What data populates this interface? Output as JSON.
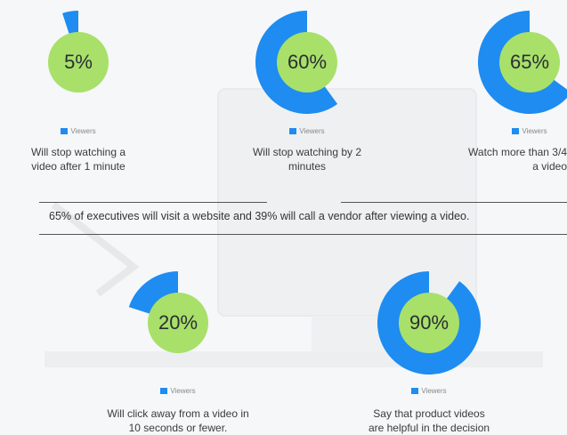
{
  "colors": {
    "arc": "#1e8cf0",
    "inner": "#a8e06a",
    "background": "#f6f7f8"
  },
  "legend_label": "Viewers",
  "statement": "65% of executives will visit a website and 39% will call a vendor after viewing a video.",
  "chart_data": [
    {
      "type": "pie",
      "value": 5,
      "percent_label": "5%",
      "series": "Viewers",
      "description": [
        "Will stop watching a",
        "video after 1 minute"
      ]
    },
    {
      "type": "pie",
      "value": 60,
      "percent_label": "60%",
      "series": "Viewers",
      "description": [
        "Will stop watching by 2",
        "minutes"
      ]
    },
    {
      "type": "pie",
      "value": 65,
      "percent_label": "65%",
      "series": "Viewers",
      "description": [
        "Watch more than 3/4",
        "a video"
      ]
    },
    {
      "type": "pie",
      "value": 20,
      "percent_label": "20%",
      "series": "Viewers",
      "description": [
        "Will click away from a video in",
        "10 seconds or fewer."
      ]
    },
    {
      "type": "pie",
      "value": 90,
      "percent_label": "90%",
      "series": "Viewers",
      "description": [
        "Say that product videos",
        "are helpful in the decision"
      ]
    }
  ]
}
